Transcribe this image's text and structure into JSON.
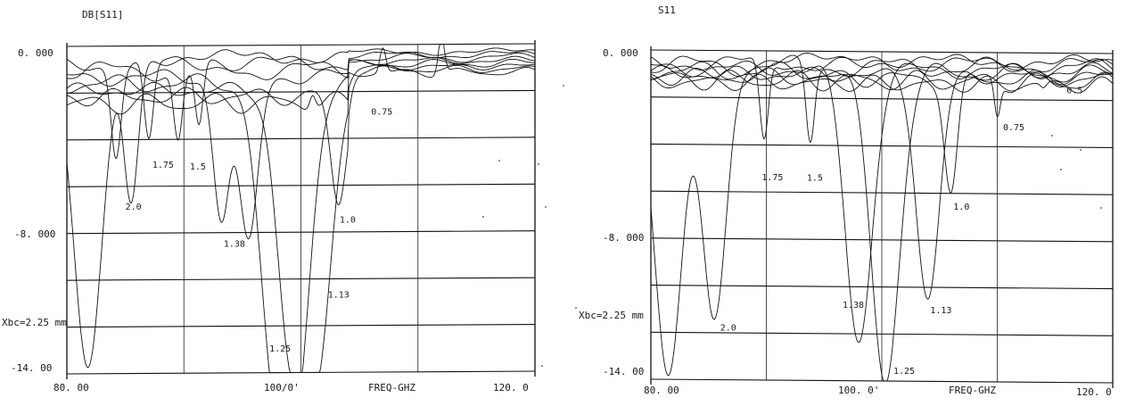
{
  "chart_data": [
    {
      "type": "line",
      "title": "DB[S11]",
      "xlabel": "FREQ-GHZ",
      "ylabel": "",
      "xlim": [
        80,
        120
      ],
      "ylim": [
        -14,
        0
      ],
      "xticks": [
        "80. 00",
        "100​/0'",
        "120. 0"
      ],
      "ytick_labels": [
        "0. 000",
        "-8. 000",
        "-14. 00"
      ],
      "annotation": "Xbc=2.25 mm",
      "grid": true,
      "series": [
        {
          "name": "2.0",
          "notches": [
            [
              81.8,
              -13.8
            ],
            [
              85.5,
              -6.5
            ]
          ]
        },
        {
          "name": "1.75",
          "notches": [
            [
              84.2,
              -4.5
            ],
            [
              87.0,
              -4.2
            ]
          ]
        },
        {
          "name": "1.5",
          "notches": [
            [
              89.5,
              -4.0
            ],
            [
              91.3,
              -3.6
            ]
          ]
        },
        {
          "name": "1.38",
          "notches": [
            [
              93.2,
              -7.3
            ],
            [
              95.5,
              -8.6
            ]
          ]
        },
        {
          "name": "1.25",
          "notches": [
            [
              97.6,
              -12.5
            ],
            [
              99.6,
              -13.9
            ]
          ]
        },
        {
          "name": "1.13",
          "notches": [
            [
              101.3,
              -13.8
            ],
            [
              99.0,
              -11.8
            ]
          ]
        },
        {
          "name": "1.0",
          "notches": [
            [
              103.2,
              -6.9
            ]
          ]
        },
        {
          "name": "0.75",
          "notches": [
            [
              101.0,
              -1.8
            ],
            [
              107.0,
              -1.4
            ],
            [
              112.0,
              -0.8
            ]
          ]
        }
      ],
      "labels": [
        {
          "text": "0.75",
          "x": 106.0,
          "y": -3.0
        },
        {
          "text": "1.75",
          "x": 87.3,
          "y": -5.2
        },
        {
          "text": "1.5",
          "x": 90.5,
          "y": -5.3
        },
        {
          "text": "2.0",
          "x": 85.0,
          "y": -7.0
        },
        {
          "text": "1.0",
          "x": 103.3,
          "y": -7.6
        },
        {
          "text": "1.38",
          "x": 93.4,
          "y": -8.6
        },
        {
          "text": "1.13",
          "x": 102.3,
          "y": -10.8
        },
        {
          "text": "1.25",
          "x": 97.3,
          "y": -13.1
        }
      ]
    },
    {
      "type": "line",
      "title": "S11",
      "xlabel": "FREQ-GHZ",
      "ylabel": "",
      "xlim": [
        80,
        120
      ],
      "ylim": [
        -14,
        0
      ],
      "xticks": [
        "80. 00",
        "100. 0'",
        "120. 0"
      ],
      "ytick_labels": [
        "0. 000",
        "-8. 000",
        "-14. 00"
      ],
      "annotation": "Xbc=2.25 mm",
      "grid": true,
      "series": [
        {
          "name": "2.0",
          "notches": [
            [
              81.5,
              -13.9
            ],
            [
              85.5,
              -11.3
            ]
          ]
        },
        {
          "name": "1.75",
          "notches": [
            [
              89.8,
              -4.0
            ]
          ]
        },
        {
          "name": "1.5",
          "notches": [
            [
              93.8,
              -3.9
            ]
          ]
        },
        {
          "name": "1.38",
          "notches": [
            [
              98.0,
              -12.3
            ]
          ]
        },
        {
          "name": "1.25",
          "notches": [
            [
              100.3,
              -13.9
            ]
          ]
        },
        {
          "name": "1.13",
          "notches": [
            [
              104.0,
              -10.5
            ]
          ]
        },
        {
          "name": "1.0",
          "notches": [
            [
              106.0,
              -6.0
            ]
          ]
        },
        {
          "name": "0.75",
          "notches": [
            [
              110.0,
              -2.7
            ]
          ]
        },
        {
          "name": "0.5",
          "notches": [
            [
              114.0,
              -1.6
            ]
          ]
        }
      ],
      "labels": [
        {
          "text": "0.5",
          "x": 116.0,
          "y": -1.7
        },
        {
          "text": "0.75",
          "x": 110.5,
          "y": -3.3
        },
        {
          "text": "1.75",
          "x": 89.6,
          "y": -5.5
        },
        {
          "text": "1.5",
          "x": 93.5,
          "y": -5.5
        },
        {
          "text": "1.0",
          "x": 106.2,
          "y": -6.7
        },
        {
          "text": "1.38",
          "x": 96.6,
          "y": -10.9
        },
        {
          "text": "1.13",
          "x": 104.2,
          "y": -11.1
        },
        {
          "text": "2.0",
          "x": 86.0,
          "y": -11.9
        },
        {
          "text": "1.25",
          "x": 101.0,
          "y": -13.7
        }
      ]
    }
  ]
}
